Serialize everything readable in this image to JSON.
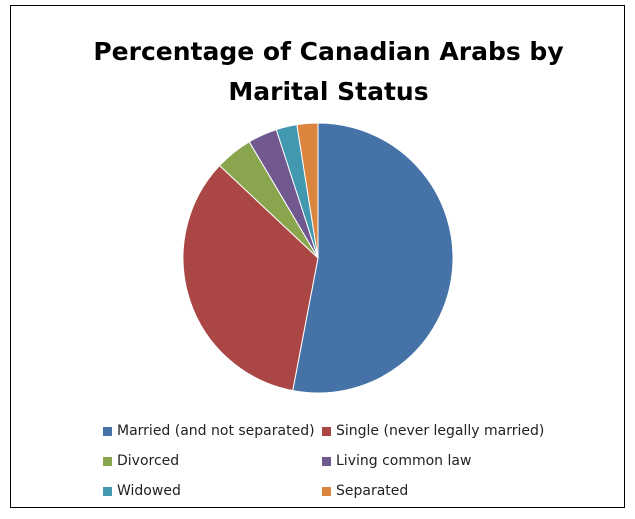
{
  "chart_data": {
    "type": "pie",
    "title": "Percentage of Canadian Arabs by Marital Status",
    "categories": [
      "Married (and not separated)",
      "Single (never legally married)",
      "Divorced",
      "Living common law",
      "Widowed",
      "Separated"
    ],
    "values": [
      53,
      34,
      4.5,
      3.5,
      2.5,
      2.5
    ],
    "colors": [
      "#4572a7",
      "#aa4643",
      "#89a54e",
      "#71588f",
      "#4198af",
      "#db843d"
    ],
    "legend": "bottom"
  }
}
